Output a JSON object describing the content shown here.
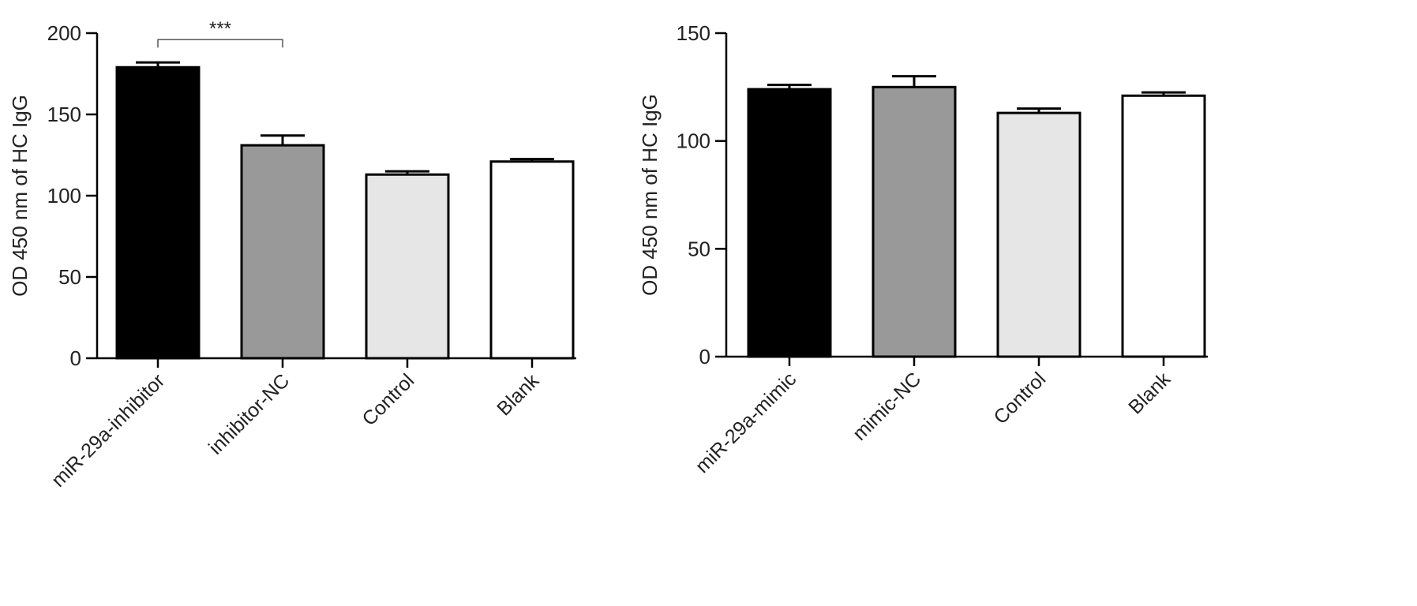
{
  "chart_data": [
    {
      "type": "bar",
      "title": "",
      "xlabel": "",
      "ylabel": "OD 450 nm of HC IgG",
      "categories": [
        "miR-29a-inhibitor",
        "inhibitor-NC",
        "Control",
        "Blank"
      ],
      "values": [
        179,
        131,
        113,
        121
      ],
      "errors": [
        3,
        6,
        2,
        1.5
      ],
      "bar_colors": [
        "#000000",
        "#999999",
        "#e6e6e6",
        "#ffffff"
      ],
      "ylim": [
        0,
        200
      ],
      "yticks": [
        "0",
        "50",
        "100",
        "150",
        "200"
      ],
      "grid": false,
      "legend": "none",
      "annotations": [
        {
          "text": "***",
          "from": 0,
          "to": 1,
          "y": 196
        }
      ]
    },
    {
      "type": "bar",
      "title": "",
      "xlabel": "",
      "ylabel": "OD 450 nm of HC IgG",
      "categories": [
        "miR-29a-mimic",
        "mimic-NC",
        "Control",
        "Blank"
      ],
      "values": [
        124,
        125,
        113,
        121
      ],
      "errors": [
        2,
        5,
        2,
        1.5
      ],
      "bar_colors": [
        "#000000",
        "#999999",
        "#e6e6e6",
        "#ffffff"
      ],
      "ylim": [
        0,
        150
      ],
      "yticks": [
        "0",
        "50",
        "100",
        "150"
      ],
      "grid": false,
      "legend": "none",
      "annotations": []
    }
  ]
}
